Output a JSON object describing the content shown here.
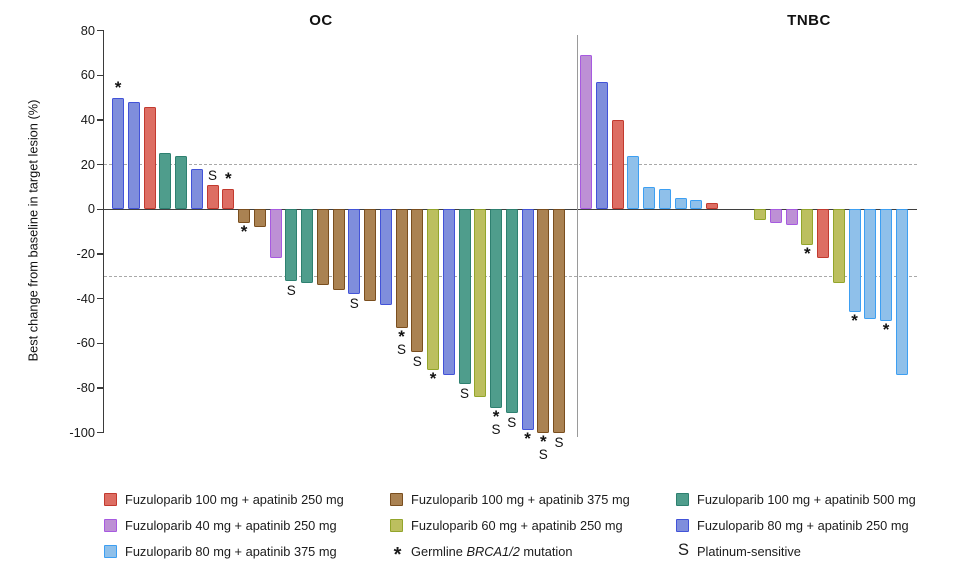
{
  "chart_data": {
    "type": "bar",
    "subtype": "waterfall",
    "ylabel": "Best change from baseline in target lesion (%)",
    "ylim": [
      -100,
      80
    ],
    "yticks": [
      80,
      60,
      40,
      20,
      0,
      -20,
      -40,
      -60,
      -80,
      -100
    ],
    "reference_lines": [
      20,
      -30
    ],
    "grid": false,
    "legend_position": "bottom",
    "colors": {
      "red": {
        "fill": "#DD6E63",
        "stroke": "#C23A2F"
      },
      "brown": {
        "fill": "#AA8252",
        "stroke": "#7A4E1E"
      },
      "teal": {
        "fill": "#4F9D8C",
        "stroke": "#2E8070"
      },
      "orchid": {
        "fill": "#BD90D5",
        "stroke": "#A75AE0"
      },
      "olive": {
        "fill": "#BCBF5F",
        "stroke": "#93A52B"
      },
      "blue": {
        "fill": "#7F8EDC",
        "stroke": "#4253D8"
      },
      "sky": {
        "fill": "#8FC0EA",
        "stroke": "#3D9FF2"
      }
    },
    "panels": [
      {
        "title": "OC",
        "bars": [
          {
            "value": 50,
            "group": "blue",
            "marks": [
              "*"
            ]
          },
          {
            "value": 48,
            "group": "blue"
          },
          {
            "value": 46,
            "group": "red"
          },
          {
            "value": 25,
            "group": "teal"
          },
          {
            "value": 24,
            "group": "teal"
          },
          {
            "value": 18,
            "group": "blue"
          },
          {
            "value": 11,
            "group": "red",
            "marks": [
              "S"
            ]
          },
          {
            "value": 9,
            "group": "red",
            "marks": [
              "*"
            ]
          },
          {
            "value": -6,
            "group": "brown",
            "marks": [
              "*"
            ]
          },
          {
            "value": -8,
            "group": "brown"
          },
          {
            "value": -22,
            "group": "orchid"
          },
          {
            "value": -32,
            "group": "teal",
            "marks": [
              "S"
            ]
          },
          {
            "value": -33,
            "group": "teal"
          },
          {
            "value": -34,
            "group": "brown"
          },
          {
            "value": -36,
            "group": "brown"
          },
          {
            "value": -38,
            "group": "blue",
            "marks": [
              "S"
            ]
          },
          {
            "value": -41,
            "group": "brown"
          },
          {
            "value": -43,
            "group": "blue"
          },
          {
            "value": -53,
            "group": "brown",
            "marks": [
              "*",
              "S"
            ]
          },
          {
            "value": -64,
            "group": "brown",
            "marks": [
              "S"
            ]
          },
          {
            "value": -72,
            "group": "olive",
            "marks": [
              "*"
            ]
          },
          {
            "value": -74,
            "group": "blue"
          },
          {
            "value": -78,
            "group": "teal",
            "marks": [
              "S"
            ]
          },
          {
            "value": -84,
            "group": "olive"
          },
          {
            "value": -89,
            "group": "teal",
            "marks": [
              "*",
              "S"
            ]
          },
          {
            "value": -91,
            "group": "teal",
            "marks": [
              "S"
            ]
          },
          {
            "value": -99,
            "group": "blue",
            "marks": [
              "*"
            ]
          },
          {
            "value": -100,
            "group": "brown",
            "marks": [
              "*",
              "S"
            ]
          },
          {
            "value": -100,
            "group": "brown",
            "marks": [
              "S"
            ]
          }
        ]
      },
      {
        "title": "TNBC",
        "gap_after_index": 8,
        "bars": [
          {
            "value": 69,
            "group": "orchid"
          },
          {
            "value": 57,
            "group": "blue"
          },
          {
            "value": 40,
            "group": "red"
          },
          {
            "value": 24,
            "group": "sky"
          },
          {
            "value": 10,
            "group": "sky"
          },
          {
            "value": 9,
            "group": "sky"
          },
          {
            "value": 5,
            "group": "sky"
          },
          {
            "value": 4,
            "group": "sky"
          },
          {
            "value": 3,
            "group": "red"
          },
          {
            "value": -5,
            "group": "olive"
          },
          {
            "value": -6,
            "group": "orchid"
          },
          {
            "value": -7,
            "group": "orchid"
          },
          {
            "value": -16,
            "group": "olive",
            "marks": [
              "*"
            ]
          },
          {
            "value": -22,
            "group": "red"
          },
          {
            "value": -33,
            "group": "olive"
          },
          {
            "value": -46,
            "group": "sky",
            "marks": [
              "*"
            ]
          },
          {
            "value": -49,
            "group": "sky"
          },
          {
            "value": -50,
            "group": "sky",
            "marks": [
              "*"
            ]
          },
          {
            "value": -74,
            "group": "sky"
          }
        ]
      }
    ],
    "legend": [
      {
        "swatch": "red",
        "label": "Fuzuloparib 100 mg + apatinib 250 mg"
      },
      {
        "swatch": "brown",
        "label": "Fuzuloparib 100 mg + apatinib 375 mg"
      },
      {
        "swatch": "teal",
        "label": "Fuzuloparib 100 mg + apatinib 500 mg"
      },
      {
        "swatch": "orchid",
        "label": "Fuzuloparib 40 mg + apatinib 250 mg"
      },
      {
        "swatch": "olive",
        "label": "Fuzuloparib 60 mg + apatinib 250 mg"
      },
      {
        "swatch": "blue",
        "label": "Fuzuloparib 80 mg + apatinib 250 mg"
      },
      {
        "swatch": "sky",
        "label": "Fuzuloparib 80 mg + apatinib 375 mg"
      },
      {
        "symbol": "*",
        "label_parts": [
          {
            "t": "Germline ",
            "i": false
          },
          {
            "t": "BRCA1/2",
            "i": true
          },
          {
            "t": " mutation",
            "i": false
          }
        ]
      },
      {
        "symbol": "S",
        "label": "Platinum-sensitive"
      }
    ]
  }
}
